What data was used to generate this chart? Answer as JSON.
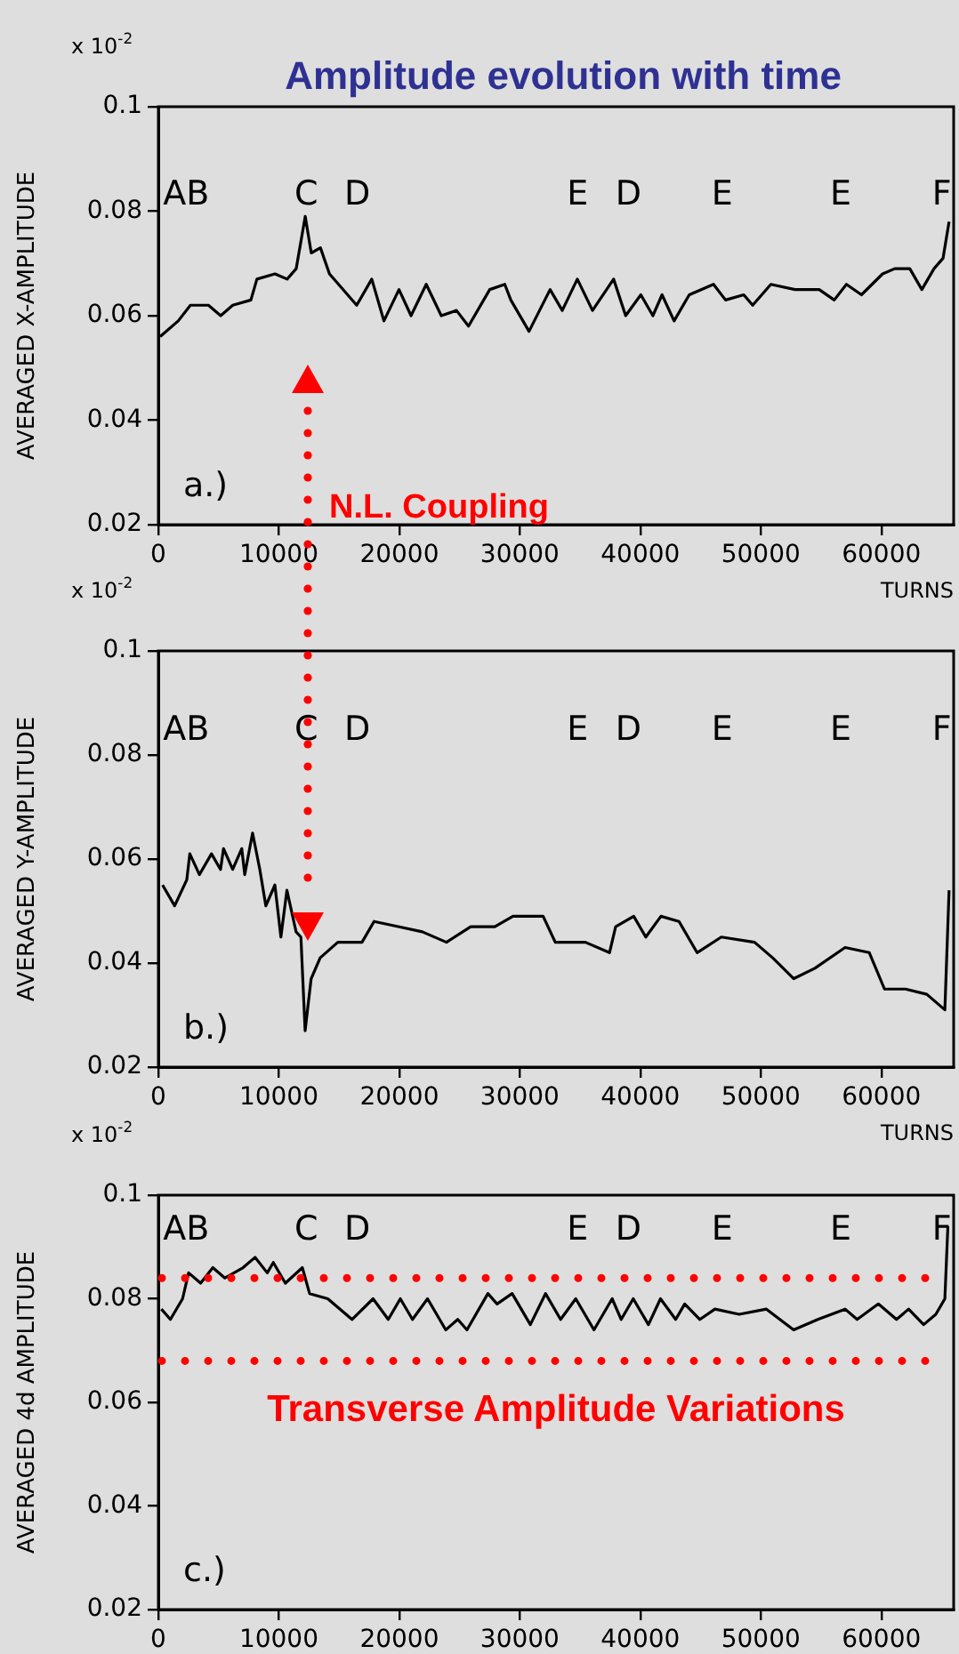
{
  "chart_data": [
    {
      "type": "line",
      "title": "Amplitude evolution with time",
      "xlabel": "TURNS",
      "ylabel": "AVERAGED X-AMPLITUDE",
      "xlim": [
        0,
        66000
      ],
      "ylim": [
        0.02,
        0.1
      ],
      "xticks": [
        0,
        10000,
        20000,
        30000,
        40000,
        50000,
        60000
      ],
      "yticks": [
        0.02,
        0.04,
        0.06,
        0.08,
        0.1
      ],
      "legend": false,
      "marker": "none",
      "x": [
        150,
        1650,
        2660,
        4160,
        5170,
        6170,
        7680,
        8180,
        9680,
        10690,
        11440,
        12190,
        12690,
        13450,
        14200,
        16460,
        17710,
        18720,
        19970,
        20970,
        22230,
        23480,
        24740,
        25740,
        27500,
        28750,
        29250,
        30760,
        32510,
        33520,
        34770,
        36030,
        37780,
        38780,
        40040,
        41040,
        41800,
        42800,
        44060,
        46070,
        47070,
        48580,
        49320,
        50830,
        52830,
        54840,
        56090,
        57100,
        58350,
        60100,
        61110,
        62360,
        63360,
        64370,
        65120,
        65620
      ],
      "series": [
        {
          "color": "#000000",
          "values": [
            0.056,
            0.059,
            0.062,
            0.062,
            0.06,
            0.062,
            0.063,
            0.067,
            0.068,
            0.067,
            0.069,
            0.079,
            0.072,
            0.073,
            0.068,
            0.062,
            0.067,
            0.059,
            0.065,
            0.06,
            0.066,
            0.06,
            0.061,
            0.058,
            0.065,
            0.066,
            0.063,
            0.057,
            0.065,
            0.061,
            0.067,
            0.061,
            0.067,
            0.06,
            0.064,
            0.06,
            0.064,
            0.059,
            0.064,
            0.066,
            0.063,
            0.064,
            0.062,
            0.066,
            0.065,
            0.065,
            0.063,
            0.066,
            0.064,
            0.068,
            0.069,
            0.069,
            0.065,
            0.069,
            0.071,
            0.078
          ]
        }
      ],
      "annotations": [
        "x 10$^{-2}$",
        "a.)",
        "AB",
        "C",
        "D",
        "E",
        "D",
        "E",
        "E",
        "F",
        "N.L. Coupling"
      ]
    },
    {
      "type": "line",
      "xlabel": "TURNS",
      "ylabel": "AVERAGED Y-AMPLITUDE",
      "xlim": [
        0,
        66000
      ],
      "ylim": [
        0.02,
        0.1
      ],
      "xticks": [
        0,
        10000,
        20000,
        30000,
        40000,
        50000,
        60000
      ],
      "yticks": [
        0.02,
        0.04,
        0.06,
        0.08,
        0.1
      ],
      "legend": false,
      "marker": "none",
      "x": [
        350,
        1350,
        2360,
        2610,
        3410,
        4410,
        5160,
        5410,
        6170,
        6920,
        7170,
        7820,
        8420,
        8920,
        9670,
        10170,
        10670,
        11430,
        11830,
        12180,
        12680,
        13430,
        14890,
        16900,
        17900,
        19900,
        21910,
        23910,
        25920,
        27920,
        29430,
        31930,
        32940,
        35440,
        37440,
        37950,
        39450,
        40450,
        41710,
        43210,
        44710,
        46720,
        49480,
        50980,
        52730,
        54480,
        56990,
        59000,
        60260,
        62010,
        63770,
        65270,
        65620
      ],
      "series": [
        {
          "color": "#000000",
          "values": [
            0.055,
            0.051,
            0.056,
            0.061,
            0.057,
            0.061,
            0.058,
            0.062,
            0.058,
            0.062,
            0.057,
            0.065,
            0.058,
            0.051,
            0.055,
            0.045,
            0.054,
            0.046,
            0.045,
            0.027,
            0.037,
            0.041,
            0.044,
            0.044,
            0.048,
            0.047,
            0.046,
            0.044,
            0.047,
            0.047,
            0.049,
            0.049,
            0.044,
            0.044,
            0.042,
            0.047,
            0.049,
            0.045,
            0.049,
            0.048,
            0.042,
            0.045,
            0.044,
            0.041,
            0.037,
            0.039,
            0.043,
            0.042,
            0.035,
            0.035,
            0.034,
            0.031,
            0.054
          ]
        }
      ],
      "annotations": [
        "x 10$^{-2}$",
        "b.)",
        "AB",
        "C",
        "D",
        "E",
        "D",
        "E",
        "E",
        "F"
      ]
    },
    {
      "type": "line",
      "ylabel": "AVERAGED 4d AMPLITUDE",
      "xlim": [
        0,
        66000
      ],
      "ylim": [
        0.02,
        0.1
      ],
      "xticks": [
        0,
        10000,
        20000,
        30000,
        40000,
        50000,
        60000
      ],
      "yticks": [
        0.02,
        0.04,
        0.06,
        0.08,
        0.1
      ],
      "legend": false,
      "marker": "none",
      "x": [
        250,
        1000,
        2010,
        2510,
        3510,
        4520,
        5520,
        7030,
        8030,
        9040,
        9540,
        10540,
        11950,
        12550,
        14060,
        16070,
        17820,
        19080,
        20080,
        21090,
        22340,
        23850,
        24850,
        25610,
        27350,
        28110,
        29360,
        30870,
        32130,
        33380,
        34640,
        36150,
        37660,
        38410,
        39410,
        40670,
        41670,
        42930,
        43680,
        44940,
        46190,
        48200,
        50460,
        52720,
        54730,
        56990,
        57990,
        59750,
        61260,
        62260,
        63510,
        64520,
        65270,
        65520
      ],
      "series": [
        {
          "color": "#000000",
          "values": [
            0.078,
            0.076,
            0.08,
            0.085,
            0.083,
            0.086,
            0.084,
            0.086,
            0.088,
            0.085,
            0.087,
            0.083,
            0.086,
            0.081,
            0.08,
            0.076,
            0.08,
            0.076,
            0.08,
            0.076,
            0.08,
            0.074,
            0.076,
            0.074,
            0.081,
            0.079,
            0.081,
            0.075,
            0.081,
            0.076,
            0.08,
            0.074,
            0.08,
            0.076,
            0.08,
            0.075,
            0.08,
            0.076,
            0.079,
            0.076,
            0.078,
            0.077,
            0.078,
            0.074,
            0.076,
            0.078,
            0.076,
            0.079,
            0.076,
            0.078,
            0.075,
            0.077,
            0.08,
            0.094
          ]
        }
      ],
      "ref_lines": [
        {
          "axis": "y",
          "value": 0.084,
          "color": "#ff0000",
          "line_style": "dotted"
        },
        {
          "axis": "y",
          "value": 0.068,
          "label": "Transverse Amplitude Variations",
          "color": "#ff0000",
          "line_style": "dotted"
        }
      ],
      "annotations": [
        "x 10$^{-2}$",
        "c.)",
        "AB",
        "C",
        "D",
        "E",
        "D",
        "E",
        "E",
        "F"
      ]
    }
  ]
}
